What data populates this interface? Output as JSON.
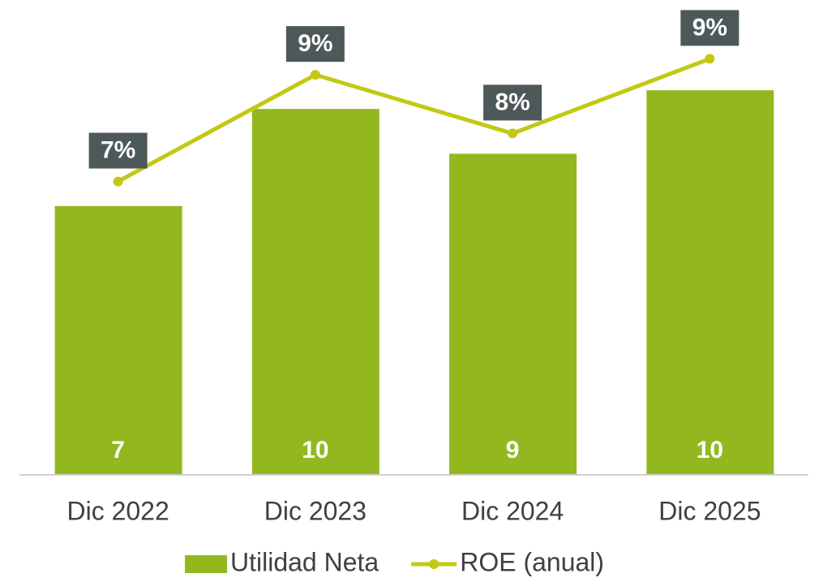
{
  "chart_data": {
    "type": "bar_line",
    "categories": [
      "Dic 2022",
      "Dic 2023",
      "Dic 2024",
      "Dic 2025"
    ],
    "series": [
      {
        "name": "Utilidad Neta",
        "type": "bar",
        "color": "#93b81f",
        "values": [
          7.2,
          9.8,
          8.6,
          10.3
        ],
        "value_labels": [
          "7",
          "10",
          "9",
          "10"
        ]
      },
      {
        "name": "ROE (anual)",
        "type": "line",
        "axis": "y2",
        "color": "#c3c814",
        "values": [
          7.0,
          9.0,
          7.9,
          9.3
        ],
        "value_labels": [
          "7%",
          "9%",
          "8%",
          "9%"
        ]
      }
    ],
    "ylim": [
      0,
      12
    ],
    "y2lim": [
      1.5,
      9.9
    ],
    "legend": "bottom"
  }
}
